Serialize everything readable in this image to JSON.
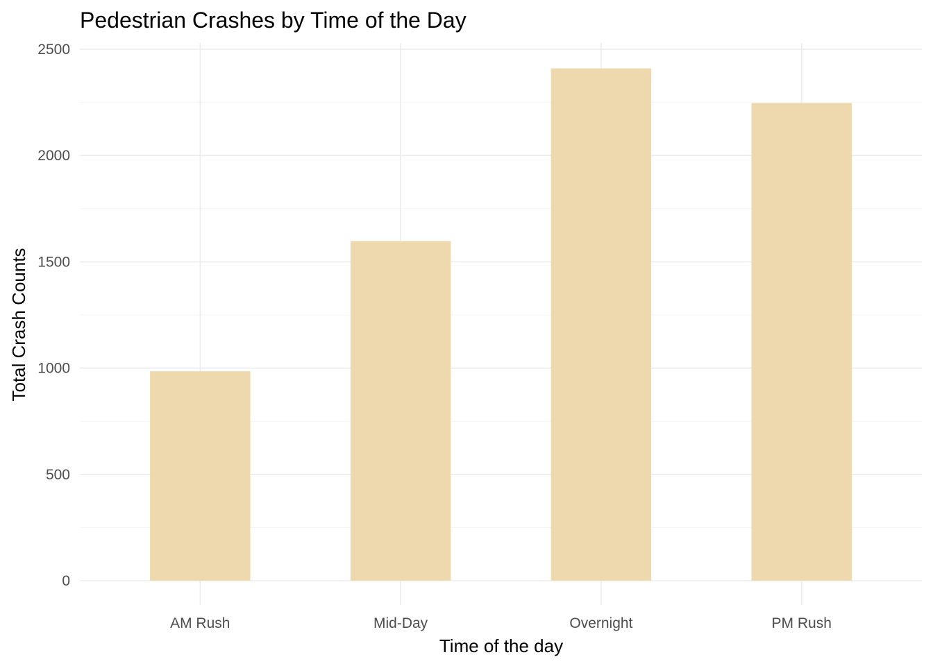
{
  "chart_data": {
    "type": "bar",
    "title": "Pedestrian Crashes by Time of the Day",
    "xlabel": "Time of the day",
    "ylabel": "Total Crash Counts",
    "categories": [
      "AM Rush",
      "Mid-Day",
      "Overnight",
      "PM Rush"
    ],
    "values": [
      985,
      1598,
      2410,
      2247
    ],
    "ylim": [
      0,
      2500
    ],
    "yticks": [
      0,
      500,
      1000,
      1500,
      2000,
      2500
    ],
    "grid": true,
    "legend": "none",
    "bar_color": "#EDD9AD"
  }
}
